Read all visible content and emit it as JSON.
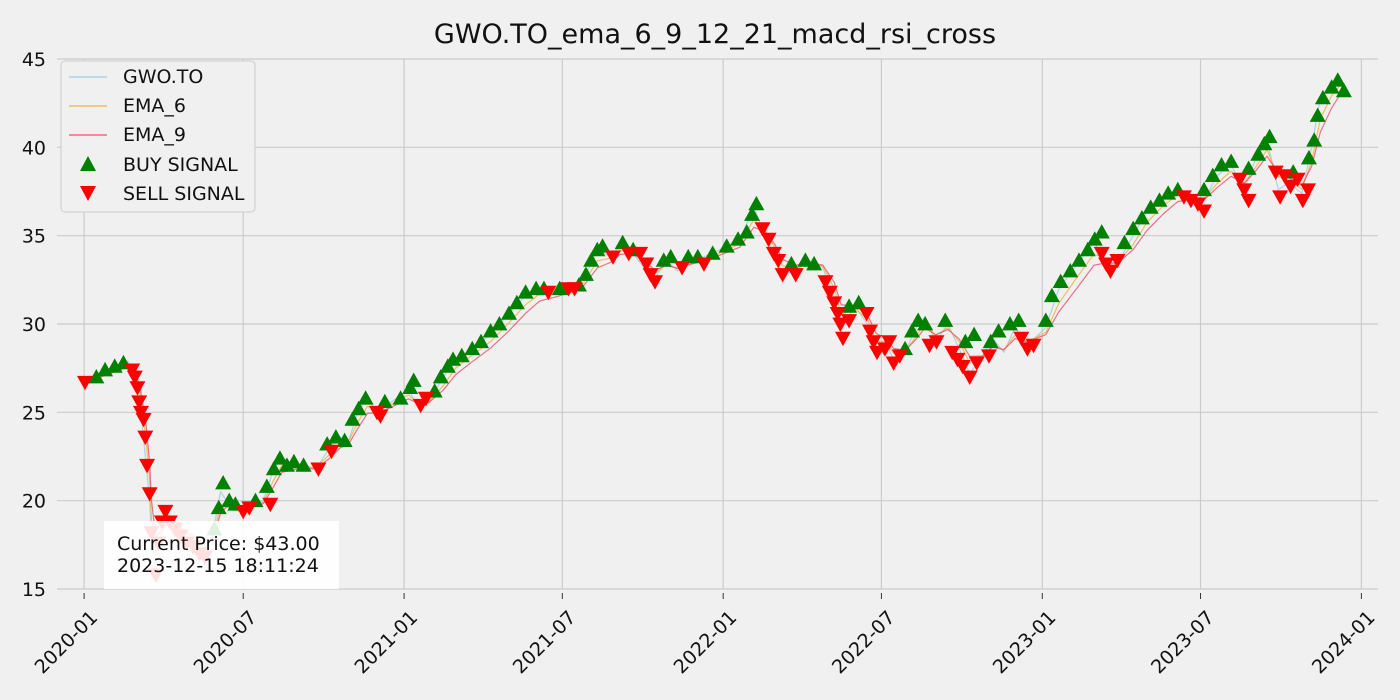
{
  "chart_data": {
    "type": "line",
    "title": "GWO.TO_ema_6_9_12_21_macd_rsi_cross",
    "ylim": [
      15,
      45
    ],
    "xlim": [
      "2019-12-01",
      "2024-01-20"
    ],
    "yticks": [
      15,
      20,
      25,
      30,
      35,
      40,
      45
    ],
    "xticks": [
      {
        "date": "2020-01-01",
        "label": "2020-01"
      },
      {
        "date": "2020-07-01",
        "label": "2020-07"
      },
      {
        "date": "2021-01-01",
        "label": "2021-01"
      },
      {
        "date": "2021-07-01",
        "label": "2021-07"
      },
      {
        "date": "2022-01-01",
        "label": "2022-01"
      },
      {
        "date": "2022-07-01",
        "label": "2022-07"
      },
      {
        "date": "2023-01-01",
        "label": "2023-01"
      },
      {
        "date": "2023-07-01",
        "label": "2023-07"
      },
      {
        "date": "2024-01-01",
        "label": "2024-01"
      }
    ],
    "grid": true,
    "legend_position": "top-left",
    "colors": {
      "price": "#9ecae1",
      "ema6": "#f0b23e",
      "ema9": "#e8506f",
      "buy": "#008000",
      "sell": "#ff0000"
    },
    "price_series": [
      [
        "2020-01-02",
        26.7
      ],
      [
        "2020-01-15",
        27.1
      ],
      [
        "2020-01-30",
        27.5
      ],
      [
        "2020-02-12",
        27.6
      ],
      [
        "2020-02-20",
        27.9
      ],
      [
        "2020-02-28",
        27.0
      ],
      [
        "2020-03-05",
        25.5
      ],
      [
        "2020-03-12",
        22.0
      ],
      [
        "2020-03-16",
        20.0
      ],
      [
        "2020-03-18",
        18.0
      ],
      [
        "2020-03-23",
        15.8
      ],
      [
        "2020-03-30",
        18.8
      ],
      [
        "2020-04-07",
        19.2
      ],
      [
        "2020-04-15",
        18.6
      ],
      [
        "2020-04-24",
        18.0
      ],
      [
        "2020-05-04",
        17.8
      ],
      [
        "2020-05-14",
        17.0
      ],
      [
        "2020-05-22",
        17.6
      ],
      [
        "2020-05-29",
        18.6
      ],
      [
        "2020-06-05",
        20.5
      ],
      [
        "2020-06-12",
        20.0
      ],
      [
        "2020-06-25",
        19.4
      ],
      [
        "2020-07-10",
        19.8
      ],
      [
        "2020-07-24",
        20.0
      ],
      [
        "2020-08-05",
        21.8
      ],
      [
        "2020-08-14",
        22.4
      ],
      [
        "2020-09-01",
        22.0
      ],
      [
        "2020-09-22",
        21.8
      ],
      [
        "2020-10-08",
        23.0
      ],
      [
        "2020-10-20",
        23.6
      ],
      [
        "2020-10-29",
        23.3
      ],
      [
        "2020-11-09",
        25.0
      ],
      [
        "2020-11-20",
        25.8
      ],
      [
        "2020-12-01",
        25.0
      ],
      [
        "2020-12-15",
        25.5
      ],
      [
        "2021-01-06",
        26.3
      ],
      [
        "2021-01-18",
        25.2
      ],
      [
        "2021-01-29",
        25.6
      ],
      [
        "2021-02-15",
        27.0
      ],
      [
        "2021-03-01",
        28.0
      ],
      [
        "2021-03-20",
        28.6
      ],
      [
        "2021-04-10",
        29.4
      ],
      [
        "2021-05-01",
        30.6
      ],
      [
        "2021-05-20",
        31.6
      ],
      [
        "2021-06-05",
        32.0
      ],
      [
        "2021-06-25",
        31.8
      ],
      [
        "2021-07-10",
        32.0
      ],
      [
        "2021-07-25",
        32.5
      ],
      [
        "2021-08-10",
        34.2
      ],
      [
        "2021-08-25",
        33.8
      ],
      [
        "2021-09-05",
        34.4
      ],
      [
        "2021-09-20",
        34.0
      ],
      [
        "2021-10-05",
        33.0
      ],
      [
        "2021-10-15",
        32.6
      ],
      [
        "2021-10-28",
        33.6
      ],
      [
        "2021-11-10",
        33.0
      ],
      [
        "2021-11-25",
        33.6
      ],
      [
        "2021-12-10",
        33.8
      ],
      [
        "2021-12-28",
        34.2
      ],
      [
        "2022-01-20",
        34.8
      ],
      [
        "2022-02-05",
        36.6
      ],
      [
        "2022-02-18",
        35.0
      ],
      [
        "2022-03-01",
        33.8
      ],
      [
        "2022-03-10",
        32.8
      ],
      [
        "2022-03-25",
        33.0
      ],
      [
        "2022-04-08",
        33.6
      ],
      [
        "2022-04-25",
        33.2
      ],
      [
        "2022-05-08",
        31.4
      ],
      [
        "2022-05-16",
        29.8
      ],
      [
        "2022-06-01",
        31.0
      ],
      [
        "2022-06-15",
        30.0
      ],
      [
        "2022-06-25",
        28.4
      ],
      [
        "2022-07-05",
        29.0
      ],
      [
        "2022-07-15",
        28.0
      ],
      [
        "2022-07-28",
        28.4
      ],
      [
        "2022-08-10",
        29.8
      ],
      [
        "2022-08-20",
        30.4
      ],
      [
        "2022-09-01",
        29.0
      ],
      [
        "2022-09-15",
        30.0
      ],
      [
        "2022-09-28",
        28.6
      ],
      [
        "2022-10-10",
        27.2
      ],
      [
        "2022-10-25",
        28.2
      ],
      [
        "2022-11-05",
        29.2
      ],
      [
        "2022-11-18",
        28.4
      ],
      [
        "2022-12-01",
        29.8
      ],
      [
        "2022-12-15",
        28.8
      ],
      [
        "2023-01-05",
        29.8
      ],
      [
        "2023-01-20",
        32.0
      ],
      [
        "2023-02-10",
        33.4
      ],
      [
        "2023-03-01",
        34.6
      ],
      [
        "2023-03-15",
        33.6
      ],
      [
        "2023-03-28",
        33.4
      ],
      [
        "2023-04-15",
        35.0
      ],
      [
        "2023-05-01",
        36.4
      ],
      [
        "2023-05-20",
        37.2
      ],
      [
        "2023-06-05",
        37.6
      ],
      [
        "2023-06-20",
        37.2
      ],
      [
        "2023-07-05",
        37.0
      ],
      [
        "2023-07-20",
        38.4
      ],
      [
        "2023-08-05",
        39.0
      ],
      [
        "2023-08-20",
        37.6
      ],
      [
        "2023-09-01",
        39.2
      ],
      [
        "2023-09-15",
        40.4
      ],
      [
        "2023-09-28",
        37.6
      ],
      [
        "2023-10-10",
        38.0
      ],
      [
        "2023-10-25",
        37.4
      ],
      [
        "2023-11-05",
        40.0
      ],
      [
        "2023-11-15",
        42.8
      ],
      [
        "2023-11-28",
        43.6
      ],
      [
        "2023-12-08",
        43.8
      ],
      [
        "2023-12-15",
        43.0
      ]
    ],
    "buy_signals": [
      [
        "2020-01-15",
        27.0
      ],
      [
        "2020-01-25",
        27.4
      ],
      [
        "2020-02-05",
        27.6
      ],
      [
        "2020-02-15",
        27.8
      ],
      [
        "2020-05-29",
        18.4
      ],
      [
        "2020-06-03",
        19.6
      ],
      [
        "2020-06-08",
        21.0
      ],
      [
        "2020-06-15",
        20.0
      ],
      [
        "2020-06-22",
        19.8
      ],
      [
        "2020-07-15",
        20.0
      ],
      [
        "2020-07-28",
        20.8
      ],
      [
        "2020-08-05",
        21.8
      ],
      [
        "2020-08-12",
        22.4
      ],
      [
        "2020-08-20",
        22.0
      ],
      [
        "2020-08-28",
        22.2
      ],
      [
        "2020-09-08",
        22.0
      ],
      [
        "2020-10-05",
        23.2
      ],
      [
        "2020-10-15",
        23.6
      ],
      [
        "2020-10-25",
        23.4
      ],
      [
        "2020-11-03",
        24.6
      ],
      [
        "2020-11-10",
        25.2
      ],
      [
        "2020-11-18",
        25.8
      ],
      [
        "2020-12-10",
        25.6
      ],
      [
        "2020-12-28",
        25.8
      ],
      [
        "2021-01-08",
        26.4
      ],
      [
        "2021-01-12",
        26.8
      ],
      [
        "2021-02-05",
        26.2
      ],
      [
        "2021-02-12",
        27.0
      ],
      [
        "2021-02-20",
        27.6
      ],
      [
        "2021-02-26",
        28.0
      ],
      [
        "2021-03-08",
        28.2
      ],
      [
        "2021-03-20",
        28.6
      ],
      [
        "2021-03-30",
        29.0
      ],
      [
        "2021-04-10",
        29.6
      ],
      [
        "2021-04-20",
        30.0
      ],
      [
        "2021-05-01",
        30.6
      ],
      [
        "2021-05-10",
        31.2
      ],
      [
        "2021-05-20",
        31.8
      ],
      [
        "2021-06-01",
        32.0
      ],
      [
        "2021-06-10",
        32.0
      ],
      [
        "2021-06-28",
        32.0
      ],
      [
        "2021-07-20",
        32.2
      ],
      [
        "2021-07-28",
        32.8
      ],
      [
        "2021-08-03",
        33.6
      ],
      [
        "2021-08-10",
        34.2
      ],
      [
        "2021-08-16",
        34.4
      ],
      [
        "2021-09-08",
        34.6
      ],
      [
        "2021-09-20",
        34.2
      ],
      [
        "2021-10-25",
        33.6
      ],
      [
        "2021-11-02",
        33.8
      ],
      [
        "2021-11-22",
        33.8
      ],
      [
        "2021-12-03",
        33.8
      ],
      [
        "2021-12-20",
        34.0
      ],
      [
        "2022-01-05",
        34.4
      ],
      [
        "2022-01-18",
        34.8
      ],
      [
        "2022-01-28",
        35.2
      ],
      [
        "2022-02-03",
        36.2
      ],
      [
        "2022-02-08",
        36.8
      ],
      [
        "2022-03-20",
        33.4
      ],
      [
        "2022-04-05",
        33.6
      ],
      [
        "2022-04-15",
        33.4
      ],
      [
        "2022-05-25",
        31.0
      ],
      [
        "2022-06-05",
        31.2
      ],
      [
        "2022-07-28",
        28.6
      ],
      [
        "2022-08-05",
        29.6
      ],
      [
        "2022-08-12",
        30.2
      ],
      [
        "2022-08-20",
        30.0
      ],
      [
        "2022-09-12",
        30.2
      ],
      [
        "2022-10-05",
        29.0
      ],
      [
        "2022-10-15",
        29.4
      ],
      [
        "2022-11-03",
        29.0
      ],
      [
        "2022-11-12",
        29.6
      ],
      [
        "2022-11-25",
        30.0
      ],
      [
        "2022-12-05",
        30.2
      ],
      [
        "2023-01-05",
        30.2
      ],
      [
        "2023-01-12",
        31.6
      ],
      [
        "2023-01-22",
        32.4
      ],
      [
        "2023-02-02",
        33.0
      ],
      [
        "2023-02-12",
        33.6
      ],
      [
        "2023-02-22",
        34.2
      ],
      [
        "2023-03-02",
        34.8
      ],
      [
        "2023-03-10",
        35.2
      ],
      [
        "2023-04-05",
        34.6
      ],
      [
        "2023-04-15",
        35.4
      ],
      [
        "2023-04-25",
        36.0
      ],
      [
        "2023-05-05",
        36.6
      ],
      [
        "2023-05-15",
        37.0
      ],
      [
        "2023-05-25",
        37.4
      ],
      [
        "2023-06-05",
        37.6
      ],
      [
        "2023-07-05",
        37.6
      ],
      [
        "2023-07-15",
        38.4
      ],
      [
        "2023-07-25",
        39.0
      ],
      [
        "2023-08-05",
        39.2
      ],
      [
        "2023-08-25",
        38.8
      ],
      [
        "2023-09-05",
        39.6
      ],
      [
        "2023-09-12",
        40.2
      ],
      [
        "2023-09-18",
        40.6
      ],
      [
        "2023-10-15",
        38.6
      ],
      [
        "2023-11-02",
        39.4
      ],
      [
        "2023-11-08",
        40.4
      ],
      [
        "2023-11-12",
        41.8
      ],
      [
        "2023-11-18",
        42.8
      ],
      [
        "2023-11-28",
        43.4
      ],
      [
        "2023-12-05",
        43.8
      ],
      [
        "2023-12-12",
        43.2
      ]
    ],
    "sell_signals": [
      [
        "2020-01-02",
        26.7
      ],
      [
        "2020-02-25",
        27.4
      ],
      [
        "2020-02-28",
        27.0
      ],
      [
        "2020-03-02",
        26.4
      ],
      [
        "2020-03-04",
        25.6
      ],
      [
        "2020-03-06",
        25.0
      ],
      [
        "2020-03-09",
        24.6
      ],
      [
        "2020-03-11",
        23.6
      ],
      [
        "2020-03-13",
        22.0
      ],
      [
        "2020-03-16",
        20.4
      ],
      [
        "2020-03-18",
        18.2
      ],
      [
        "2020-03-23",
        15.8
      ],
      [
        "2020-03-26",
        17.6
      ],
      [
        "2020-03-30",
        18.8
      ],
      [
        "2020-04-03",
        19.4
      ],
      [
        "2020-04-08",
        18.8
      ],
      [
        "2020-04-14",
        18.4
      ],
      [
        "2020-04-20",
        18.0
      ],
      [
        "2020-04-27",
        17.6
      ],
      [
        "2020-05-05",
        17.4
      ],
      [
        "2020-05-12",
        17.0
      ],
      [
        "2020-05-18",
        16.8
      ],
      [
        "2020-07-01",
        19.4
      ],
      [
        "2020-07-08",
        19.6
      ],
      [
        "2020-08-01",
        19.8
      ],
      [
        "2020-09-25",
        21.8
      ],
      [
        "2020-10-10",
        22.8
      ],
      [
        "2020-12-01",
        25.0
      ],
      [
        "2020-12-05",
        24.8
      ],
      [
        "2021-01-20",
        25.4
      ],
      [
        "2021-01-26",
        25.8
      ],
      [
        "2021-06-15",
        31.8
      ],
      [
        "2021-07-08",
        32.0
      ],
      [
        "2021-07-15",
        32.0
      ],
      [
        "2021-08-28",
        33.8
      ],
      [
        "2021-09-15",
        34.0
      ],
      [
        "2021-09-28",
        34.0
      ],
      [
        "2021-10-05",
        33.4
      ],
      [
        "2021-10-10",
        32.8
      ],
      [
        "2021-10-15",
        32.4
      ],
      [
        "2021-11-15",
        33.2
      ],
      [
        "2021-12-10",
        33.4
      ],
      [
        "2022-02-15",
        35.4
      ],
      [
        "2022-02-22",
        34.8
      ],
      [
        "2022-02-28",
        34.0
      ],
      [
        "2022-03-05",
        33.6
      ],
      [
        "2022-03-10",
        32.8
      ],
      [
        "2022-03-25",
        32.8
      ],
      [
        "2022-04-28",
        32.4
      ],
      [
        "2022-05-03",
        31.8
      ],
      [
        "2022-05-08",
        31.2
      ],
      [
        "2022-05-12",
        30.6
      ],
      [
        "2022-05-15",
        30.0
      ],
      [
        "2022-05-18",
        29.2
      ],
      [
        "2022-05-25",
        30.2
      ],
      [
        "2022-06-14",
        30.6
      ],
      [
        "2022-06-18",
        29.6
      ],
      [
        "2022-06-22",
        29.0
      ],
      [
        "2022-06-26",
        28.4
      ],
      [
        "2022-07-05",
        28.6
      ],
      [
        "2022-07-10",
        29.0
      ],
      [
        "2022-07-15",
        27.8
      ],
      [
        "2022-07-22",
        28.2
      ],
      [
        "2022-08-25",
        28.8
      ],
      [
        "2022-09-02",
        29.0
      ],
      [
        "2022-09-20",
        28.4
      ],
      [
        "2022-09-26",
        28.0
      ],
      [
        "2022-10-02",
        27.6
      ],
      [
        "2022-10-10",
        27.0
      ],
      [
        "2022-10-18",
        27.8
      ],
      [
        "2022-11-01",
        28.2
      ],
      [
        "2022-12-08",
        29.2
      ],
      [
        "2022-12-15",
        28.6
      ],
      [
        "2022-12-22",
        28.8
      ],
      [
        "2023-03-10",
        34.0
      ],
      [
        "2023-03-15",
        33.4
      ],
      [
        "2023-03-20",
        33.0
      ],
      [
        "2023-03-28",
        33.6
      ],
      [
        "2023-06-12",
        37.2
      ],
      [
        "2023-06-20",
        37.0
      ],
      [
        "2023-06-28",
        36.8
      ],
      [
        "2023-07-05",
        36.4
      ],
      [
        "2023-08-15",
        38.2
      ],
      [
        "2023-08-20",
        37.6
      ],
      [
        "2023-08-25",
        37.0
      ],
      [
        "2023-09-25",
        38.6
      ],
      [
        "2023-09-30",
        37.2
      ],
      [
        "2023-10-05",
        38.4
      ],
      [
        "2023-10-12",
        37.8
      ],
      [
        "2023-10-20",
        38.2
      ],
      [
        "2023-10-26",
        37.0
      ],
      [
        "2023-11-01",
        37.6
      ]
    ]
  },
  "legend": {
    "price_label": "GWO.TO",
    "ema6_label": "EMA_6",
    "ema9_label": "EMA_9",
    "buy_label": "BUY SIGNAL",
    "sell_label": "SELL SIGNAL"
  },
  "info_box": {
    "price_line": "Current Price: $43.00",
    "time_line": "2023-12-15 18:11:24"
  }
}
